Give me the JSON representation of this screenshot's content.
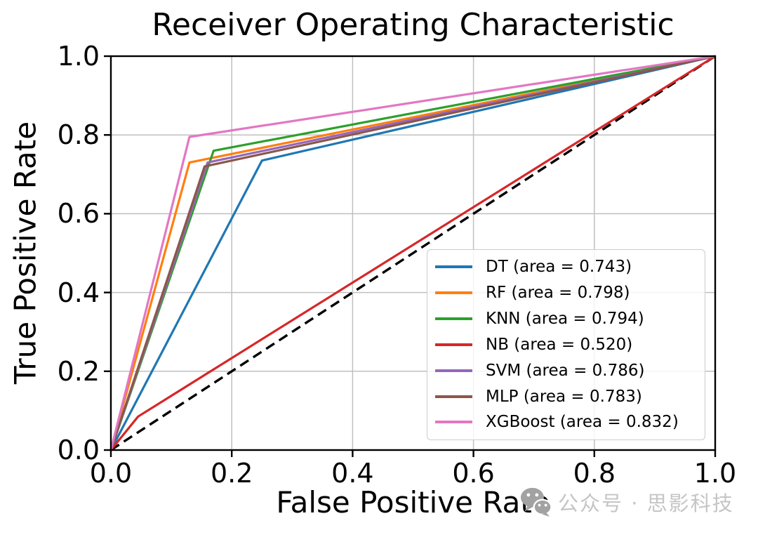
{
  "watermark": {
    "text": "公众号 · 思影科技",
    "icon": "wechat-icon",
    "text_color": "#c5c5c5",
    "icon_color": "#a2a2a2"
  },
  "chart_data": {
    "type": "line",
    "title": "Receiver Operating Characteristic",
    "xlabel": "False Positive Rate",
    "ylabel": "True Positive Rate",
    "xlim": [
      0.0,
      1.0
    ],
    "ylim": [
      0.0,
      1.0
    ],
    "x_ticks": [
      0.0,
      0.2,
      0.4,
      0.6,
      0.8,
      1.0
    ],
    "x_tick_labels": [
      "0.0",
      "0.2",
      "0.4",
      "0.6",
      "0.8",
      "1.0"
    ],
    "y_ticks": [
      0.0,
      0.2,
      0.4,
      0.6,
      0.8,
      1.0
    ],
    "y_tick_labels": [
      "0.0",
      "0.2",
      "0.4",
      "0.6",
      "0.8",
      "1.0"
    ],
    "grid": true,
    "grid_color": "#c0c0c0",
    "legend_position": "lower right",
    "reference_line": {
      "style": "dashed",
      "color": "#000000",
      "points": [
        [
          0.0,
          0.0
        ],
        [
          1.0,
          1.0
        ]
      ]
    },
    "series": [
      {
        "name": "DT",
        "label": "DT (area = 0.743)",
        "auc": 0.743,
        "color": "#1f77b4",
        "points": [
          [
            0.0,
            0.0
          ],
          [
            0.25,
            0.735
          ],
          [
            1.0,
            1.0
          ]
        ]
      },
      {
        "name": "RF",
        "label": "RF (area = 0.798)",
        "auc": 0.798,
        "color": "#ff7f0e",
        "points": [
          [
            0.0,
            0.0
          ],
          [
            0.13,
            0.73
          ],
          [
            1.0,
            1.0
          ]
        ]
      },
      {
        "name": "KNN",
        "label": "KNN (area = 0.794)",
        "auc": 0.794,
        "color": "#2ca02c",
        "points": [
          [
            0.0,
            0.0
          ],
          [
            0.17,
            0.76
          ],
          [
            1.0,
            1.0
          ]
        ]
      },
      {
        "name": "NB",
        "label": "NB (area = 0.520)",
        "auc": 0.52,
        "color": "#d62728",
        "points": [
          [
            0.0,
            0.0
          ],
          [
            0.045,
            0.085
          ],
          [
            1.0,
            1.0
          ]
        ]
      },
      {
        "name": "SVM",
        "label": "SVM (area = 0.786)",
        "auc": 0.786,
        "color": "#9467bd",
        "points": [
          [
            0.0,
            0.0
          ],
          [
            0.16,
            0.73
          ],
          [
            1.0,
            1.0
          ]
        ]
      },
      {
        "name": "MLP",
        "label": "MLP (area = 0.783)",
        "auc": 0.783,
        "color": "#8c564b",
        "points": [
          [
            0.0,
            0.0
          ],
          [
            0.155,
            0.72
          ],
          [
            1.0,
            1.0
          ]
        ]
      },
      {
        "name": "XGBoost",
        "label": "XGBoost (area = 0.832)",
        "auc": 0.832,
        "color": "#e377c2",
        "points": [
          [
            0.0,
            0.0
          ],
          [
            0.13,
            0.795
          ],
          [
            1.0,
            1.0
          ]
        ]
      }
    ]
  }
}
